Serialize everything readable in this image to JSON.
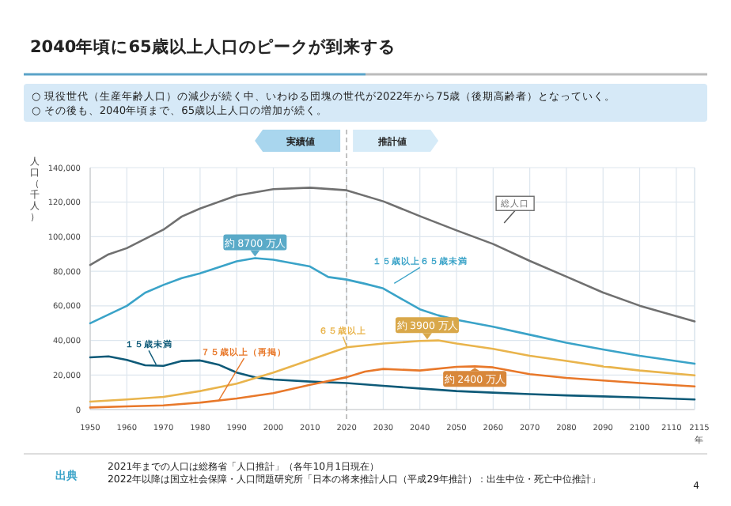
{
  "chart_data": {
    "type": "line",
    "title": "2040年頃に65歳以上人口のピークが到来する",
    "subtitle": "○ 現役世代（生産年齢人口）の減少が続く中、いわゆる団塊の世代が2022年から75歳（後期高齢者）となっていく。\n○ その後も、2040年頃まで、65歳以上人口の増加が続く。",
    "xlabel": "年",
    "ylabel": "人口（千人）",
    "xlim": [
      1950,
      2115
    ],
    "ylim": [
      0,
      140000
    ],
    "xticks": [
      1950,
      1960,
      1970,
      1980,
      1990,
      2000,
      2010,
      2020,
      2030,
      2040,
      2050,
      2060,
      2070,
      2080,
      2090,
      2100,
      2110,
      2115
    ],
    "yticks": [
      {
        "value": 0,
        "label": "0"
      },
      {
        "value": 20000,
        "label": "20,000"
      },
      {
        "value": 40000,
        "label": "40,000"
      },
      {
        "value": 60000,
        "label": "60,000"
      },
      {
        "value": 80000,
        "label": "80,000"
      },
      {
        "value": 100000,
        "label": "100,000"
      },
      {
        "value": 120000,
        "label": "120,000"
      },
      {
        "value": 140000,
        "label": "140,000"
      }
    ],
    "grid": true,
    "legend": false,
    "marker": "none",
    "line_style": "solid",
    "series": [
      {
        "name": "総人口",
        "color": "#707070",
        "x": [
          1950,
          1955,
          1960,
          1970,
          1975,
          1980,
          1990,
          2000,
          2010,
          2020,
          2030,
          2040,
          2050,
          2060,
          2070,
          2080,
          2090,
          2100,
          2115
        ],
        "values": [
          83700,
          89800,
          93400,
          104100,
          111700,
          116300,
          123900,
          127500,
          128400,
          126900,
          120500,
          111900,
          103700,
          95800,
          86000,
          76900,
          67700,
          60100,
          51000
        ]
      },
      {
        "name": "１５歳以上６５歳未満",
        "color": "#3aa3c8",
        "x": [
          1950,
          1960,
          1965,
          1970,
          1975,
          1980,
          1990,
          1995,
          2000,
          2010,
          2015,
          2020,
          2025,
          2030,
          2035,
          2040,
          2045,
          2050,
          2060,
          2070,
          2080,
          2090,
          2100,
          2115
        ],
        "values": [
          49900,
          60000,
          67600,
          72100,
          76100,
          78800,
          85800,
          87600,
          86700,
          82800,
          76700,
          75200,
          72800,
          70100,
          64000,
          58000,
          54500,
          51900,
          47900,
          43300,
          38700,
          34800,
          31100,
          26500
        ]
      },
      {
        "name": "１５歳未満",
        "color": "#0e5a78",
        "x": [
          1950,
          1955,
          1960,
          1965,
          1970,
          1975,
          1980,
          1985,
          1990,
          1995,
          2000,
          2010,
          2020,
          2030,
          2040,
          2050,
          2060,
          2070,
          2080,
          2090,
          2100,
          2115
        ],
        "values": [
          30200,
          30800,
          28700,
          25600,
          25300,
          28100,
          28400,
          26000,
          21400,
          18600,
          17400,
          16200,
          15300,
          13700,
          12200,
          10700,
          9800,
          8900,
          8200,
          7600,
          7000,
          5800
        ]
      },
      {
        "name": "６５歳以上",
        "color": "#e9b44c",
        "x": [
          1950,
          1960,
          1970,
          1980,
          1990,
          2000,
          2010,
          2020,
          2030,
          2040,
          2045,
          2050,
          2060,
          2070,
          2080,
          2090,
          2100,
          2115
        ],
        "values": [
          4600,
          5800,
          7300,
          10700,
          15000,
          21400,
          28700,
          36000,
          38200,
          39700,
          40000,
          38200,
          35100,
          31100,
          28100,
          25000,
          22600,
          19800
        ]
      },
      {
        "name": "７５歳以上（再掲）",
        "color": "#e8782a",
        "x": [
          1950,
          1960,
          1970,
          1980,
          1990,
          2000,
          2010,
          2020,
          2025,
          2030,
          2040,
          2050,
          2055,
          2060,
          2070,
          2080,
          2090,
          2100,
          2115
        ],
        "values": [
          1200,
          1800,
          2400,
          4000,
          6400,
          9500,
          14300,
          18700,
          22000,
          23500,
          22600,
          24700,
          25000,
          24400,
          20500,
          18300,
          16800,
          15300,
          13400
        ]
      }
    ],
    "ref_lines": [
      {
        "axis": "x",
        "value": 2020,
        "color": "#bbbbbb",
        "line_style": "dashed"
      }
    ],
    "annotations": [
      {
        "text": "約 8700 万人",
        "x": 1995,
        "y": 87600
      },
      {
        "text": "約 3900 万人",
        "x": 2042,
        "y": 39700
      },
      {
        "text": "約 2400 万人",
        "x": 2055,
        "y": 25000
      },
      "実績値",
      "推計値",
      "出典",
      "2021年までの人口は総務省「人口推計」（各年10月1日現在）\n2022年以降は国立社会保障・人口問題研究所「日本の将来推計人口（平成29年推計）：出生中位・死亡中位推計」",
      "4"
    ]
  }
}
